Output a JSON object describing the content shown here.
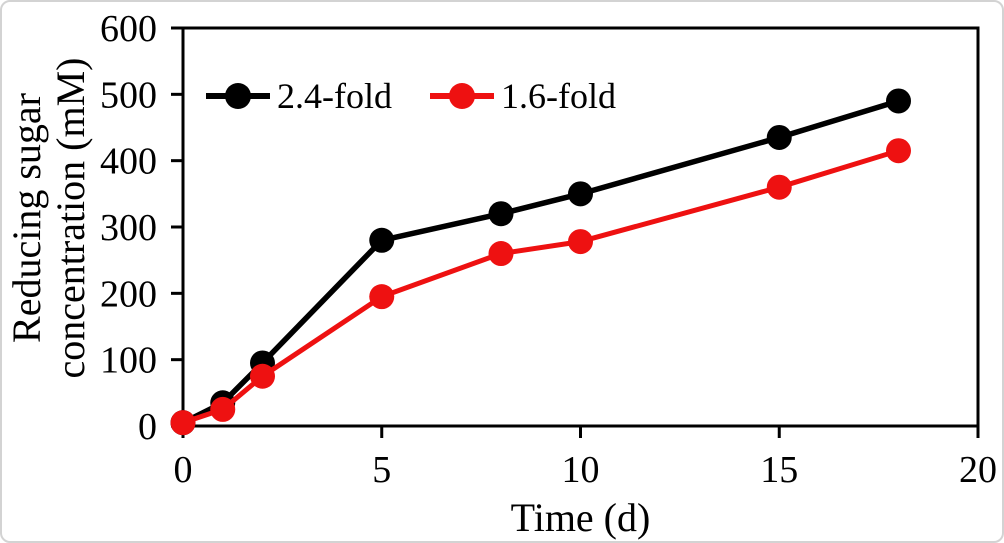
{
  "figure": {
    "background": "#ffffff",
    "frame_border_color": "#d3d3d3",
    "axis_color": "#000000"
  },
  "chart_data": {
    "type": "line",
    "title": "",
    "xlabel": "Time (d)",
    "ylabel": "Reducing sugar concentration (mM)",
    "ylabel_lines": [
      "Reducing sugar",
      "concentration (mM)"
    ],
    "xlim": [
      0,
      20
    ],
    "ylim": [
      0,
      600
    ],
    "xticks": [
      0,
      5,
      10,
      15,
      20
    ],
    "yticks": [
      0,
      100,
      200,
      300,
      400,
      500,
      600
    ],
    "grid": false,
    "legend_position": "inside-top-left",
    "x": [
      0,
      1,
      2,
      5,
      8,
      10,
      15,
      18
    ],
    "series": [
      {
        "name": "2.4-fold",
        "color": "#000000",
        "marker": "circle",
        "values": [
          5,
          35,
          95,
          280,
          320,
          350,
          435,
          490
        ]
      },
      {
        "name": "1.6-fold",
        "color": "#ee1111",
        "marker": "circle",
        "values": [
          5,
          25,
          75,
          195,
          260,
          278,
          360,
          415
        ]
      }
    ]
  }
}
